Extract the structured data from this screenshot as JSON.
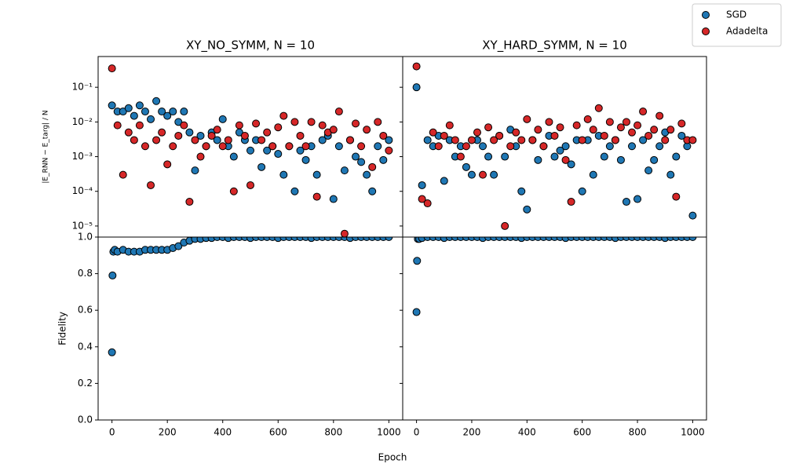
{
  "figure": {
    "xlabel": "Epoch",
    "legend": "upper right"
  },
  "chart_data": [
    {
      "type": "scatter",
      "title": "XY_NO_SYMM, N = 10",
      "ylabel": "|E_RNN − E_targ| / N",
      "log_y": true,
      "xlim": [
        -50,
        1050
      ],
      "ylim": [
        4.8e-06,
        0.77
      ],
      "yticks": [
        {
          "value": 1e-05,
          "label": "10⁻⁵"
        },
        {
          "value": 0.0001,
          "label": "10⁻⁴"
        },
        {
          "value": 0.001,
          "label": "10⁻³"
        },
        {
          "value": 0.01,
          "label": "10⁻²"
        },
        {
          "value": 0.1,
          "label": "10⁻¹"
        }
      ],
      "x": [
        0,
        20,
        40,
        60,
        80,
        100,
        120,
        140,
        160,
        180,
        200,
        220,
        240,
        260,
        280,
        300,
        320,
        340,
        360,
        380,
        400,
        420,
        440,
        460,
        480,
        500,
        520,
        540,
        560,
        580,
        600,
        620,
        640,
        660,
        680,
        700,
        720,
        740,
        760,
        780,
        800,
        820,
        840,
        860,
        880,
        900,
        920,
        940,
        960,
        980,
        1000
      ],
      "series": [
        {
          "name": "SGD",
          "color": "#1f77b4",
          "values": [
            0.03,
            0.02,
            0.02,
            0.025,
            0.015,
            0.03,
            0.02,
            0.012,
            0.04,
            0.02,
            0.015,
            0.02,
            0.01,
            0.02,
            0.005,
            0.0004,
            0.004,
            0.002,
            0.005,
            0.003,
            0.012,
            0.002,
            0.001,
            0.005,
            0.003,
            0.0015,
            0.003,
            0.0005,
            0.0015,
            0.002,
            0.0012,
            0.0003,
            0.002,
            0.0001,
            0.0015,
            0.0008,
            0.002,
            0.0003,
            0.003,
            0.004,
            6e-05,
            0.002,
            0.0004,
            0.003,
            0.001,
            0.0007,
            0.0003,
            0.0001,
            0.002,
            0.0008,
            0.003
          ]
        },
        {
          "name": "Adadelta",
          "color": "#d62728",
          "values": [
            0.35,
            0.008,
            0.0003,
            0.005,
            0.003,
            0.008,
            0.002,
            0.00015,
            0.003,
            0.005,
            0.0006,
            0.002,
            0.004,
            0.008,
            5e-05,
            0.003,
            0.001,
            0.002,
            0.004,
            0.006,
            0.002,
            0.003,
            0.0001,
            0.008,
            0.004,
            0.00015,
            0.009,
            0.003,
            0.005,
            0.002,
            0.007,
            0.015,
            0.002,
            0.01,
            0.004,
            0.002,
            0.01,
            7e-05,
            0.008,
            0.005,
            0.006,
            0.02,
            6e-06,
            0.003,
            0.009,
            0.002,
            0.006,
            0.0005,
            0.01,
            0.004,
            0.0015
          ]
        }
      ]
    },
    {
      "type": "scatter",
      "title": "XY_HARD_SYMM, N = 10",
      "log_y": true,
      "yticklabels": false,
      "xlim": [
        -50,
        1050
      ],
      "ylim": [
        4.8e-06,
        0.77
      ],
      "yticks": [
        1e-05,
        0.0001,
        0.001,
        0.01,
        0.1
      ],
      "x": [
        0,
        20,
        40,
        60,
        80,
        100,
        120,
        140,
        160,
        180,
        200,
        220,
        240,
        260,
        280,
        300,
        320,
        340,
        360,
        380,
        400,
        420,
        440,
        460,
        480,
        500,
        520,
        540,
        560,
        580,
        600,
        620,
        640,
        660,
        680,
        700,
        720,
        740,
        760,
        780,
        800,
        820,
        840,
        860,
        880,
        900,
        920,
        940,
        960,
        980,
        1000
      ],
      "series": [
        {
          "color": "#1f77b4",
          "values": [
            0.1,
            0.00015,
            0.003,
            0.002,
            0.004,
            0.0002,
            0.003,
            0.001,
            0.002,
            0.0005,
            0.0003,
            0.003,
            0.002,
            0.001,
            0.0003,
            0.004,
            0.001,
            0.006,
            0.002,
            0.0001,
            3e-05,
            0.003,
            0.0008,
            0.002,
            0.004,
            0.001,
            0.0015,
            0.002,
            0.0006,
            0.003,
            0.0001,
            0.003,
            0.0003,
            0.004,
            0.001,
            0.002,
            0.003,
            0.0008,
            5e-05,
            0.002,
            6e-05,
            0.003,
            0.0004,
            0.0008,
            0.002,
            0.005,
            0.0003,
            0.001,
            0.004,
            0.002,
            2e-05
          ]
        },
        {
          "color": "#d62728",
          "values": [
            0.4,
            6e-05,
            4.5e-05,
            0.005,
            0.002,
            0.004,
            0.008,
            0.003,
            0.001,
            0.002,
            0.003,
            0.005,
            0.0003,
            0.007,
            0.003,
            0.004,
            1e-05,
            0.002,
            0.005,
            0.003,
            0.012,
            0.003,
            0.006,
            0.002,
            0.01,
            0.004,
            0.007,
            0.0008,
            5e-05,
            0.008,
            0.003,
            0.012,
            0.006,
            0.025,
            0.004,
            0.01,
            0.003,
            0.007,
            0.01,
            0.005,
            0.008,
            0.02,
            0.004,
            0.006,
            0.015,
            0.003,
            0.006,
            7e-05,
            0.009,
            0.003,
            0.003
          ]
        }
      ]
    },
    {
      "type": "scatter",
      "ylabel": "Fidelity",
      "xlim": [
        -50,
        1050
      ],
      "ylim": [
        0,
        1.0
      ],
      "xticks": [
        0,
        200,
        400,
        600,
        800,
        1000
      ],
      "yticks": [
        {
          "value": 0,
          "label": "0.0"
        },
        0.2,
        0.4,
        0.6,
        0.8,
        {
          "value": 1,
          "label": "1.0"
        }
      ],
      "x": [
        0,
        2,
        5,
        10,
        20,
        40,
        60,
        80,
        100,
        120,
        140,
        160,
        180,
        200,
        220,
        240,
        260,
        280,
        300,
        320,
        340,
        360,
        380,
        400,
        420,
        440,
        460,
        480,
        500,
        520,
        540,
        560,
        580,
        600,
        620,
        640,
        660,
        680,
        700,
        720,
        740,
        760,
        780,
        800,
        820,
        840,
        860,
        880,
        900,
        920,
        940,
        960,
        980,
        1000
      ],
      "series": [
        {
          "color": "#1f77b4",
          "values": [
            0.37,
            0.79,
            0.92,
            0.93,
            0.92,
            0.93,
            0.92,
            0.92,
            0.92,
            0.93,
            0.93,
            0.93,
            0.93,
            0.93,
            0.94,
            0.95,
            0.97,
            0.98,
            0.99,
            0.99,
            0.995,
            0.995,
            1.0,
            1.0,
            0.995,
            1.0,
            1.0,
            1.0,
            0.995,
            1.0,
            1.0,
            1.0,
            1.0,
            0.995,
            1.0,
            1.0,
            1.0,
            1.0,
            1.0,
            0.995,
            1.0,
            1.0,
            1.0,
            1.0,
            1.0,
            1.0,
            0.995,
            1.0,
            1.0,
            1.0,
            1.0,
            1.0,
            1.0,
            1.0
          ]
        }
      ]
    },
    {
      "type": "scatter",
      "yticklabels": false,
      "xlim": [
        -50,
        1050
      ],
      "ylim": [
        0,
        1.0
      ],
      "xticks": [
        0,
        200,
        400,
        600,
        800,
        1000
      ],
      "yticks": [
        0,
        0.2,
        0.4,
        0.6,
        0.8,
        1
      ],
      "x": [
        0,
        2,
        5,
        10,
        20,
        40,
        60,
        80,
        100,
        120,
        140,
        160,
        180,
        200,
        220,
        240,
        260,
        280,
        300,
        320,
        340,
        360,
        380,
        400,
        420,
        440,
        460,
        480,
        500,
        520,
        540,
        560,
        580,
        600,
        620,
        640,
        660,
        680,
        700,
        720,
        740,
        760,
        780,
        800,
        820,
        840,
        860,
        880,
        900,
        920,
        940,
        960,
        980,
        1000
      ],
      "series": [
        {
          "color": "#1f77b4",
          "values": [
            0.59,
            0.87,
            0.99,
            0.99,
            0.995,
            1.0,
            1.0,
            1.0,
            0.995,
            1.0,
            1.0,
            1.0,
            1.0,
            1.0,
            1.0,
            0.995,
            1.0,
            1.0,
            1.0,
            1.0,
            1.0,
            1.0,
            0.995,
            1.0,
            1.0,
            1.0,
            1.0,
            1.0,
            1.0,
            1.0,
            0.995,
            1.0,
            1.0,
            1.0,
            1.0,
            1.0,
            1.0,
            1.0,
            1.0,
            0.995,
            1.0,
            1.0,
            1.0,
            1.0,
            1.0,
            1.0,
            1.0,
            1.0,
            0.995,
            1.0,
            1.0,
            1.0,
            1.0,
            1.0
          ]
        }
      ]
    }
  ]
}
